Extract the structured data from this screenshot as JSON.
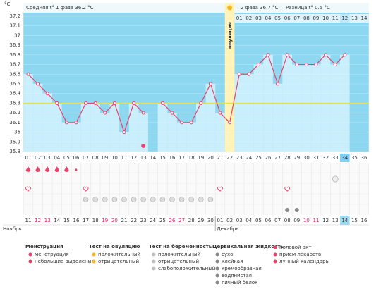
{
  "chart_data": {
    "type": "line",
    "y_unit": "°C",
    "header": {
      "phase1": "Средняя t° 1 фаза 36.2 °C",
      "phase2": "2 фаза 36.7 °C",
      "difference": "Разница t° 0.5 °C"
    },
    "ovulation_label": "овуляция",
    "phase2_days": [
      "01",
      "02",
      "03",
      "04",
      "05",
      "06",
      "07",
      "08",
      "09",
      "10",
      "11",
      "12",
      "13",
      "14"
    ],
    "categories": [
      "01",
      "02",
      "03",
      "04",
      "05",
      "06",
      "07",
      "08",
      "09",
      "10",
      "11",
      "12",
      "13",
      "14",
      "15",
      "16",
      "17",
      "18",
      "19",
      "20",
      "21",
      "22",
      "23",
      "24",
      "25",
      "26",
      "27",
      "28",
      "29",
      "30",
      "31",
      "32",
      "33",
      "34",
      "35",
      "36"
    ],
    "values": [
      36.6,
      36.5,
      36.4,
      36.3,
      36.1,
      36.1,
      36.3,
      36.3,
      36.2,
      36.3,
      36.0,
      36.3,
      36.2,
      null,
      36.3,
      36.2,
      36.1,
      36.1,
      36.3,
      36.5,
      36.2,
      36.1,
      36.6,
      36.6,
      36.7,
      36.8,
      36.5,
      36.8,
      36.7,
      36.7,
      36.7,
      36.8,
      36.7,
      36.8,
      null,
      null
    ],
    "coverline": 36.3,
    "dates": [
      "11",
      "12",
      "13",
      "14",
      "15",
      "16",
      "17",
      "18",
      "19",
      "20",
      "21",
      "22",
      "23",
      "24",
      "25",
      "26",
      "27",
      "28",
      "29",
      "30",
      "01",
      "02",
      "03",
      "04",
      "05",
      "06",
      "07",
      "08",
      "09",
      "10",
      "11",
      "12",
      "13",
      "14",
      "15",
      "16"
    ],
    "months": [
      "Ноябрь",
      "Декабрь"
    ],
    "ylim": [
      35.8,
      37.2
    ],
    "yticks": [
      35.8,
      35.9,
      36,
      36.1,
      36.2,
      36.3,
      36.4,
      36.5,
      36.6,
      36.7,
      36.8,
      36.9,
      37,
      37.1,
      37.2
    ],
    "color": "#e8436b"
  },
  "legend": {
    "sections": [
      {
        "title": "Менструация",
        "items": [
          "менструация",
          "небольшие выделения"
        ]
      },
      {
        "title": "Тест на овуляцию",
        "items": [
          "положительный",
          "отрицательный"
        ]
      },
      {
        "title": "Тест на беременность",
        "items": [
          "положительный",
          "отрицательный",
          "слабоположительный"
        ]
      },
      {
        "title": "Цервикальная жидкость",
        "items": [
          "сухо",
          "клейкая",
          "кремообразная",
          "водянистая",
          "яичный белок"
        ]
      },
      {
        "items": [
          "половой акт",
          "прием лекарств",
          "лунный календарь"
        ]
      }
    ]
  }
}
